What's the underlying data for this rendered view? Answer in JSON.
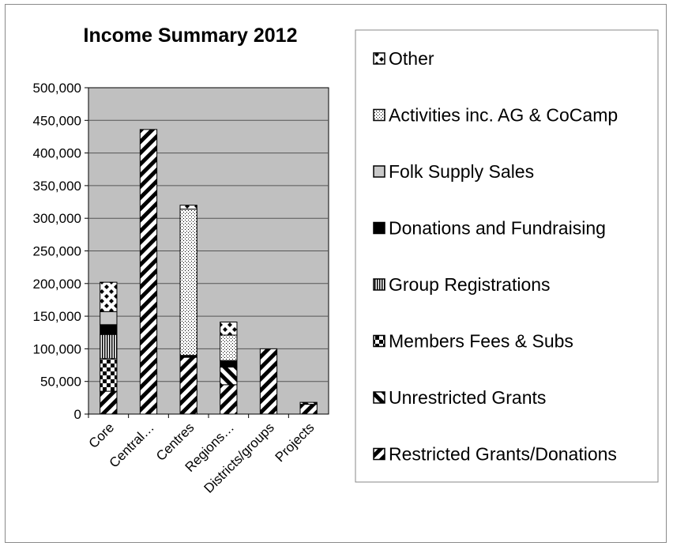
{
  "chart_data": {
    "type": "bar",
    "stacked": true,
    "title": "Income Summary 2012",
    "xlabel": "",
    "ylabel": "",
    "ylim": [
      0,
      500000
    ],
    "yticks": [
      "0",
      "50,000",
      "100,000",
      "150,000",
      "200,000",
      "250,000",
      "300,000",
      "350,000",
      "400,000",
      "450,000",
      "500,000"
    ],
    "grid": true,
    "legend_position": "right",
    "categories": [
      "Core",
      "Central…",
      "Centres",
      "Regions…",
      "Districts/groups",
      "Projects"
    ],
    "series": [
      {
        "name": "Restricted Grants/Donations",
        "pattern": "diag-right",
        "values": [
          35000,
          436000,
          87000,
          45000,
          100000,
          15000
        ]
      },
      {
        "name": "Unrestricted Grants",
        "pattern": "diag-left",
        "values": [
          0,
          0,
          0,
          27000,
          0,
          3000
        ]
      },
      {
        "name": "Members Fees & Subs",
        "pattern": "checker",
        "values": [
          50000,
          0,
          0,
          0,
          0,
          0
        ]
      },
      {
        "name": "Group Registrations",
        "pattern": "vertical",
        "values": [
          37000,
          0,
          0,
          0,
          0,
          0
        ]
      },
      {
        "name": "Donations and Fundraising",
        "pattern": "solid",
        "values": [
          15000,
          0,
          3000,
          10000,
          0,
          0
        ]
      },
      {
        "name": "Folk Supply Sales",
        "pattern": "gray",
        "values": [
          20000,
          0,
          0,
          0,
          0,
          0
        ]
      },
      {
        "name": "Activities inc. AG & CoCamp",
        "pattern": "dots",
        "values": [
          0,
          0,
          224000,
          39000,
          0,
          0
        ]
      },
      {
        "name": "Other",
        "pattern": "diamond",
        "values": [
          45000,
          0,
          6000,
          20000,
          0,
          0
        ]
      }
    ],
    "colors": {
      "plot_background": "#c0c0c0",
      "gridline": "#555555",
      "bar_ink": "#000000",
      "bar_paper": "#ffffff"
    }
  }
}
